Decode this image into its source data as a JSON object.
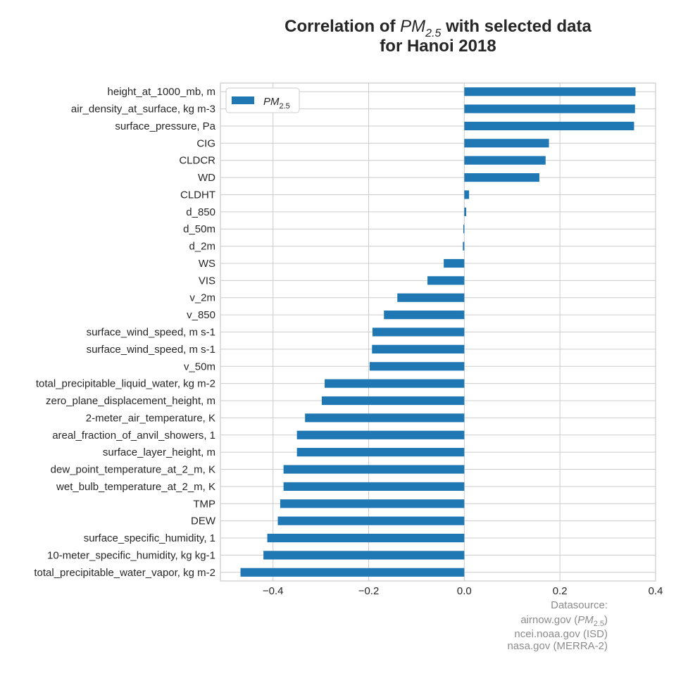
{
  "chart_data": {
    "type": "bar",
    "orientation": "horizontal",
    "title": {
      "line1_prefix": "Correlation of ",
      "symbol_main": "PM",
      "symbol_sub": "2.5",
      "line1_suffix": " with selected data",
      "line2": "for Hanoi 2018"
    },
    "xlim": [
      -0.51,
      0.4
    ],
    "xticks": [
      {
        "value": -0.4,
        "label": "−0.4"
      },
      {
        "value": -0.2,
        "label": "−0.2"
      },
      {
        "value": 0.0,
        "label": "0.0"
      },
      {
        "value": 0.2,
        "label": "0.2"
      },
      {
        "value": 0.4,
        "label": "0.4"
      }
    ],
    "grid": true,
    "legend": {
      "placement": "top-left",
      "name_main": "PM",
      "name_sub": "2.5"
    },
    "bar_color": "#1f77b4",
    "categories": [
      "height_at_1000_mb, m",
      "air_density_at_surface, kg m-3",
      "surface_pressure, Pa",
      "CIG",
      "CLDCR",
      "WD",
      "CLDHT",
      "d_850",
      "d_50m",
      "d_2m",
      "WS",
      "VIS",
      "v_2m",
      "v_850",
      "surface_wind_speed, m s-1",
      "surface_wind_speed, m s-1",
      "v_50m",
      "total_precipitable_liquid_water, kg m-2",
      "zero_plane_displacement_height, m",
      "2-meter_air_temperature, K",
      "areal_fraction_of_anvil_showers, 1",
      "surface_layer_height, m",
      "dew_point_temperature_at_2_m, K",
      "wet_bulb_temperature_at_2_m, K",
      "TMP",
      "DEW",
      "surface_specific_humidity, 1",
      "10-meter_specific_humidity, kg kg-1",
      "total_precipitable_water_vapor, kg m-2"
    ],
    "values": [
      0.358,
      0.357,
      0.355,
      0.177,
      0.17,
      0.157,
      0.01,
      0.004,
      -0.002,
      -0.003,
      -0.043,
      -0.077,
      -0.14,
      -0.168,
      -0.192,
      -0.193,
      -0.198,
      -0.292,
      -0.298,
      -0.333,
      -0.35,
      -0.35,
      -0.378,
      -0.378,
      -0.385,
      -0.39,
      -0.412,
      -0.42,
      -0.468
    ]
  },
  "source": {
    "heading": "Datasource:",
    "line1_prefix": "airnow.gov (",
    "line1_main": "PM",
    "line1_sub": "2.5",
    "line1_suffix": ")",
    "line2": "ncei.noaa.gov (ISD)",
    "line3": "nasa.gov (MERRA-2)"
  }
}
